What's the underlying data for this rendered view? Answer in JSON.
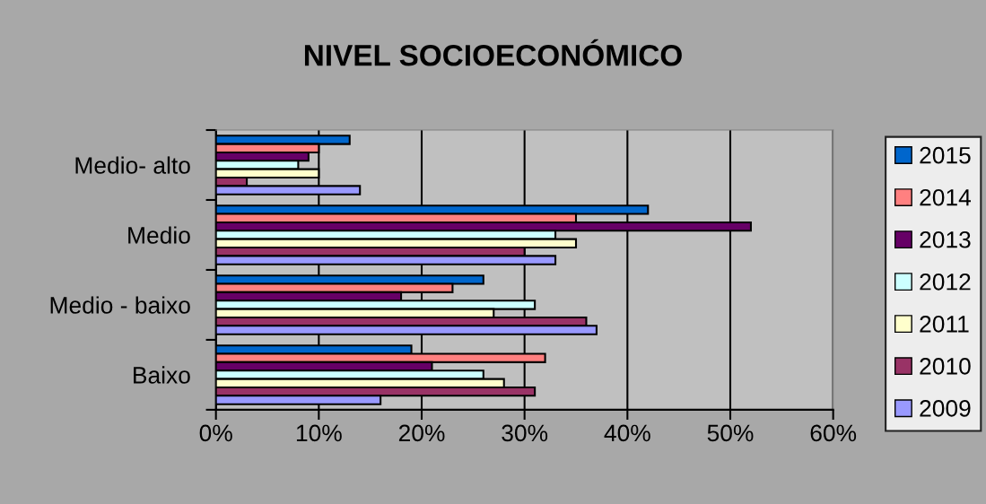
{
  "chart_data": {
    "type": "bar",
    "orientation": "horizontal",
    "title": "NIVEL SOCIOECONÓMICO",
    "categories": [
      "Medio- alto",
      "Medio",
      "Medio - baixo",
      "Baixo"
    ],
    "series": [
      {
        "name": "2015",
        "color": "#0066cc",
        "values": [
          13,
          42,
          26,
          19
        ]
      },
      {
        "name": "2014",
        "color": "#ff8080",
        "values": [
          10,
          35,
          23,
          32
        ]
      },
      {
        "name": "2013",
        "color": "#660066",
        "values": [
          9,
          52,
          18,
          21
        ]
      },
      {
        "name": "2012",
        "color": "#ccffff",
        "values": [
          8,
          33,
          31,
          26
        ]
      },
      {
        "name": "2011",
        "color": "#ffffcc",
        "values": [
          10,
          35,
          27,
          28
        ]
      },
      {
        "name": "2010",
        "color": "#993366",
        "values": [
          3,
          30,
          36,
          31
        ]
      },
      {
        "name": "2009",
        "color": "#9999ff",
        "values": [
          14,
          33,
          37,
          16
        ]
      }
    ],
    "xlim": [
      0,
      60
    ],
    "xticks": [
      {
        "value": 0,
        "label": "0%"
      },
      {
        "value": 10,
        "label": "10%"
      },
      {
        "value": 20,
        "label": "20%"
      },
      {
        "value": 30,
        "label": "30%"
      },
      {
        "value": 40,
        "label": "40%"
      },
      {
        "value": 50,
        "label": "50%"
      },
      {
        "value": 60,
        "label": "60%"
      }
    ],
    "grid": "x",
    "legend": "right"
  }
}
